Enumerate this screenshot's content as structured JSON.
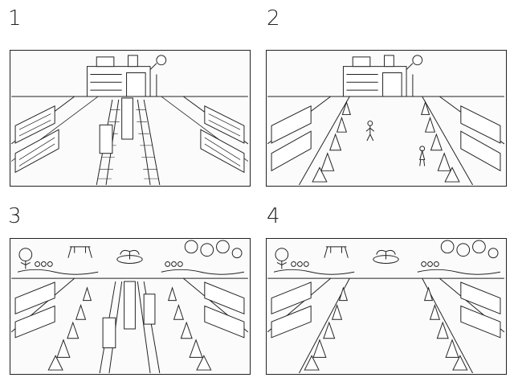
{
  "panels": [
    {
      "label": "1",
      "scene": "school-with-railway"
    },
    {
      "label": "2",
      "scene": "school-with-tree-lined-street"
    },
    {
      "label": "3",
      "scene": "park-with-railway"
    },
    {
      "label": "4",
      "scene": "park-with-tree-lined-street"
    }
  ],
  "colors": {
    "line": "#222222",
    "paper": "#fbfbfb"
  }
}
